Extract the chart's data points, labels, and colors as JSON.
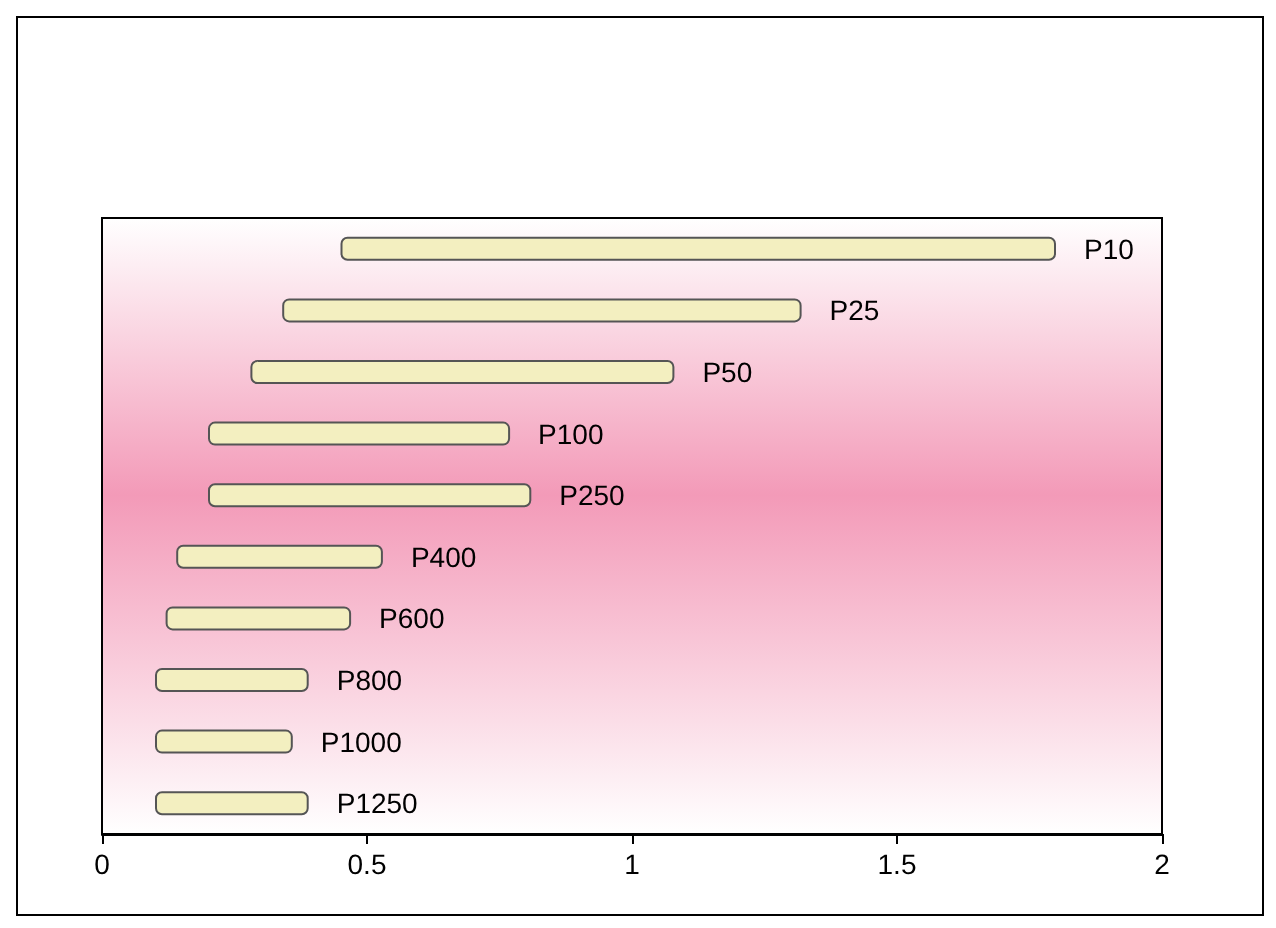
{
  "chart_data": {
    "type": "bar",
    "orientation": "horizontal",
    "categories": [
      "P10",
      "P25",
      "P50",
      "P100",
      "P250",
      "P400",
      "P600",
      "P800",
      "P1000",
      "P1250"
    ],
    "base": [
      0.45,
      0.34,
      0.28,
      0.2,
      0.2,
      0.14,
      0.12,
      0.1,
      0.1,
      0.1
    ],
    "values": [
      1.35,
      0.98,
      0.8,
      0.57,
      0.61,
      0.39,
      0.35,
      0.29,
      0.26,
      0.29
    ],
    "color": "#f3efc0",
    "xlim": [
      0,
      2
    ],
    "xticks": [
      0,
      0.5,
      1,
      1.5,
      2
    ],
    "grid": false
  }
}
